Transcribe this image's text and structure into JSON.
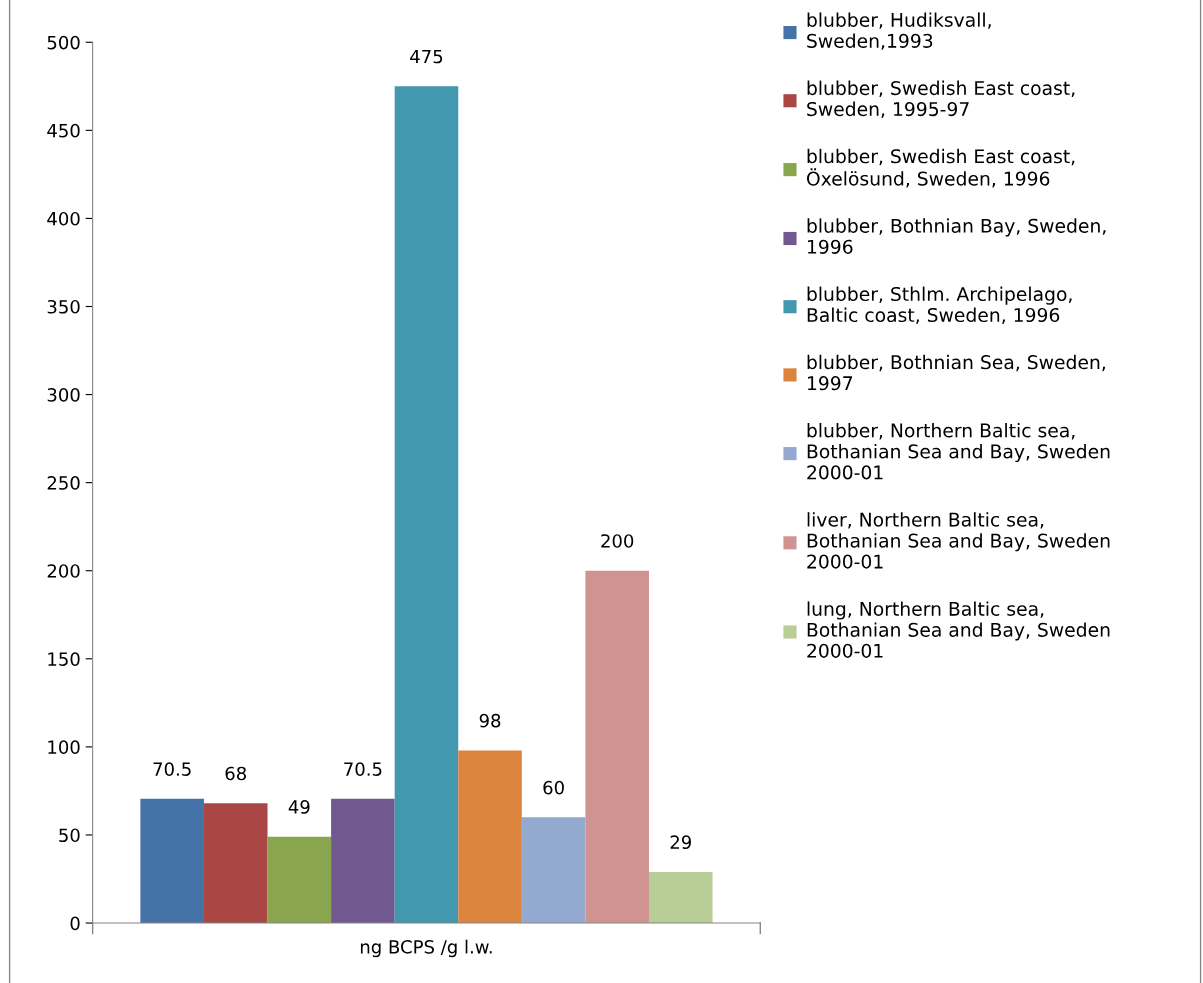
{
  "chart_data": {
    "type": "bar",
    "categories": [
      "ng BCPS /g l.w."
    ],
    "series": [
      {
        "name": "blubber, Hudiksvall, Sweden,1993",
        "color": "#4572a7",
        "values": [
          70.5
        ]
      },
      {
        "name": "blubber, Swedish East coast, Sweden, 1995-97",
        "color": "#aa4643",
        "values": [
          68
        ]
      },
      {
        "name": "blubber, Swedish East coast, Öxelösund, Sweden, 1996",
        "color": "#89a54e",
        "values": [
          49
        ]
      },
      {
        "name": "blubber, Bothnian Bay, Sweden, 1996",
        "color": "#71588f",
        "values": [
          70.5
        ]
      },
      {
        "name": "blubber, Sthlm. Archipelago, Baltic coast, Sweden, 1996",
        "color": "#4198af",
        "values": [
          475
        ]
      },
      {
        "name": "blubber, Bothnian Sea, Sweden, 1997",
        "color": "#db843d",
        "values": [
          98
        ]
      },
      {
        "name": "blubber, Northern Baltic sea, Bothanian Sea and Bay, Sweden 2000-01",
        "color": "#93a9cf",
        "values": [
          60
        ]
      },
      {
        "name": "liver, Northern Baltic sea, Bothanian Sea and Bay, Sweden 2000-01",
        "color": "#d19392",
        "values": [
          200
        ]
      },
      {
        "name": "lung, Northern Baltic sea, Bothanian Sea and Bay, Sweden 2000-01",
        "color": "#b9cd96",
        "values": [
          29
        ]
      }
    ],
    "ylim": [
      0,
      500
    ],
    "yticks": [
      0,
      50,
      100,
      150,
      200,
      250,
      300,
      350,
      400,
      450,
      500
    ],
    "data_labels": true,
    "grid": false,
    "legend": "right"
  }
}
